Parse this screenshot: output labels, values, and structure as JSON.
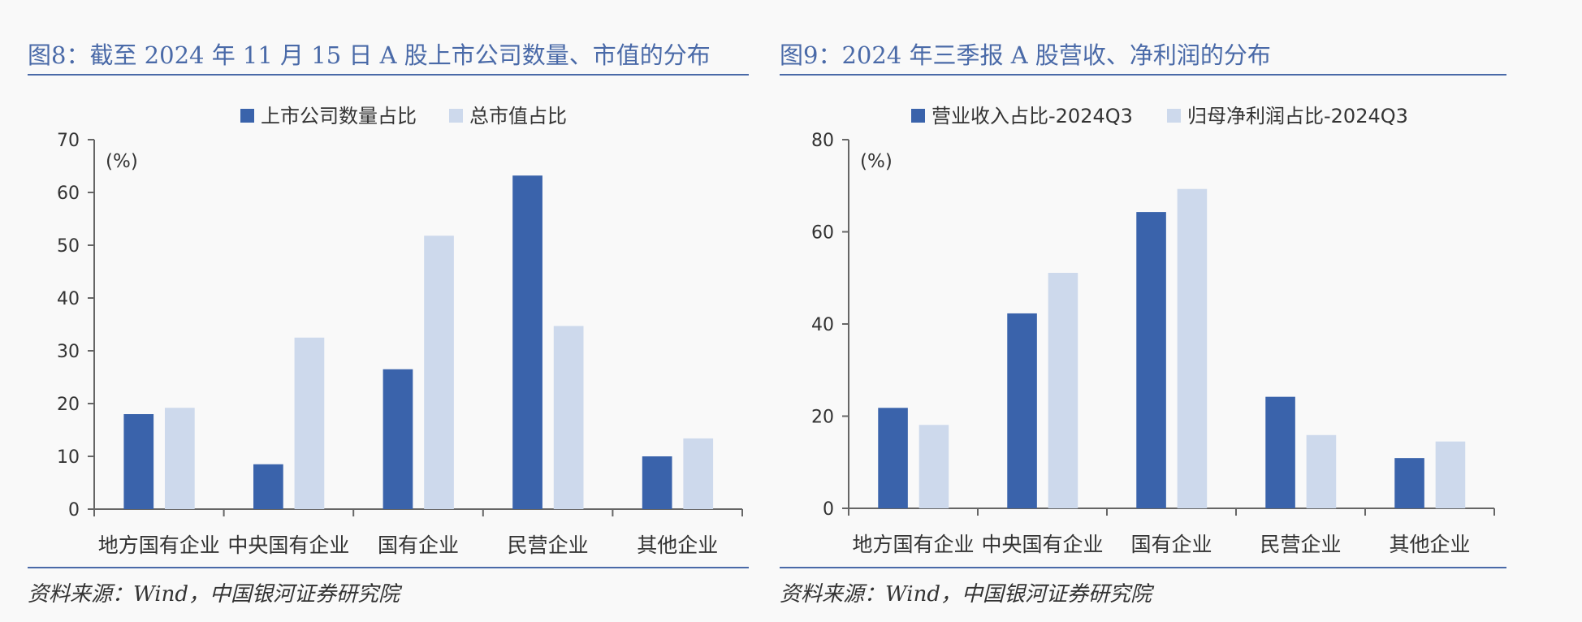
{
  "colors": {
    "primary": "#3a63ab",
    "secondary": "#cdd9ec",
    "title": "#4a6aa8",
    "axis": "#666666"
  },
  "chart_data": [
    {
      "type": "bar",
      "title": "图8：截至 2024 年 11 月 15 日 A 股上市公司数量、市值的分布",
      "source": "资料来源：Wind，中国银河证券研究院",
      "unit_label": "(%)",
      "categories": [
        "地方国有企业",
        "中央国有企业",
        "国有企业",
        "民营企业",
        "其他企业"
      ],
      "series": [
        {
          "name": "上市公司数量占比",
          "values": [
            18.0,
            8.5,
            26.5,
            63.2,
            10.0
          ]
        },
        {
          "name": "总市值占比",
          "values": [
            19.2,
            32.5,
            51.8,
            34.7,
            13.4
          ]
        }
      ],
      "ylim": [
        0,
        70
      ],
      "yticks": [
        0,
        10,
        20,
        30,
        40,
        50,
        60,
        70
      ],
      "legend_position": "top-center",
      "grid": false
    },
    {
      "type": "bar",
      "title": "图9：2024 年三季报 A 股营收、净利润的分布",
      "source": "资料来源：Wind，中国银河证券研究院",
      "unit_label": "(%)",
      "categories": [
        "地方国有企业",
        "中央国有企业",
        "国有企业",
        "民营企业",
        "其他企业"
      ],
      "series": [
        {
          "name": "营业收入占比-2024Q3",
          "values": [
            21.8,
            42.3,
            64.3,
            24.2,
            10.9
          ]
        },
        {
          "name": "归母净利润占比-2024Q3",
          "values": [
            18.1,
            51.1,
            69.3,
            15.9,
            14.5
          ]
        }
      ],
      "ylim": [
        0,
        80
      ],
      "yticks": [
        0,
        20,
        40,
        60,
        80
      ],
      "legend_position": "top-center",
      "grid": false
    }
  ]
}
